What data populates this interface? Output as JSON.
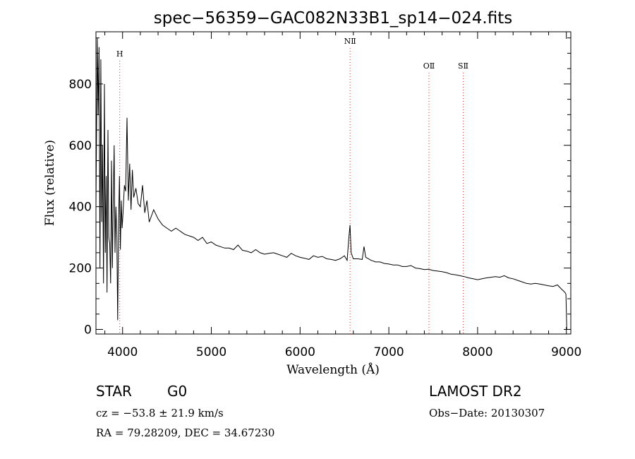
{
  "chart_data": {
    "type": "line",
    "title": "spec−56359−GAC082N33B1_sp14−024.fits",
    "xlabel": "Wavelength (Å)",
    "ylabel": "Flux (relative)",
    "xlim": [
      3700,
      9050
    ],
    "ylim": [
      -15,
      970
    ],
    "x_ticks": [
      4000,
      5000,
      6000,
      7000,
      8000,
      9000
    ],
    "y_ticks": [
      0,
      200,
      400,
      600,
      800
    ],
    "grid": false,
    "line_color": "#000000",
    "marker_color": "#d63333",
    "lines": [
      {
        "label": "H",
        "wavelength": 3968
      },
      {
        "label": "NⅡ",
        "wavelength": 6563
      },
      {
        "label": "OⅡ",
        "wavelength": 7452
      },
      {
        "label": "SⅡ",
        "wavelength": 7838
      }
    ],
    "series": [
      {
        "x": [
          3700,
          3715,
          3725,
          3735,
          3745,
          3755,
          3765,
          3775,
          3785,
          3795,
          3805,
          3815,
          3825,
          3835,
          3845,
          3855,
          3865,
          3875,
          3885,
          3895,
          3905,
          3915,
          3925,
          3935,
          3945,
          3955,
          3965,
          3975,
          3985,
          3995,
          4005,
          4020,
          4035,
          4050,
          4065,
          4080,
          4095,
          4110,
          4125,
          4150,
          4175,
          4200,
          4225,
          4250,
          4275,
          4300,
          4350,
          4400,
          4450,
          4500,
          4550,
          4600,
          4650,
          4700,
          4750,
          4800,
          4850,
          4900,
          4950,
          5000,
          5050,
          5100,
          5150,
          5200,
          5250,
          5300,
          5350,
          5400,
          5450,
          5500,
          5550,
          5600,
          5650,
          5700,
          5750,
          5800,
          5850,
          5900,
          5950,
          6000,
          6050,
          6100,
          6150,
          6200,
          6250,
          6300,
          6350,
          6400,
          6450,
          6500,
          6530,
          6550,
          6563,
          6575,
          6600,
          6650,
          6700,
          6720,
          6740,
          6760,
          6800,
          6850,
          6900,
          6950,
          7000,
          7050,
          7100,
          7150,
          7200,
          7250,
          7300,
          7350,
          7400,
          7450,
          7500,
          7550,
          7600,
          7650,
          7700,
          7750,
          7800,
          7850,
          7900,
          7950,
          8000,
          8050,
          8100,
          8150,
          8200,
          8250,
          8300,
          8350,
          8400,
          8450,
          8500,
          8550,
          8600,
          8650,
          8700,
          8750,
          8800,
          8850,
          8900,
          8950,
          8970,
          8985,
          8995,
          9000,
          9005
        ],
        "y": [
          400,
          950,
          700,
          920,
          200,
          880,
          350,
          600,
          150,
          800,
          250,
          500,
          120,
          650,
          300,
          280,
          150,
          550,
          200,
          420,
          600,
          250,
          400,
          300,
          30,
          350,
          500,
          260,
          420,
          330,
          380,
          470,
          450,
          690,
          420,
          540,
          390,
          520,
          430,
          460,
          410,
          400,
          470,
          380,
          420,
          350,
          390,
          360,
          340,
          330,
          320,
          330,
          320,
          310,
          305,
          300,
          290,
          300,
          280,
          285,
          275,
          270,
          265,
          265,
          260,
          275,
          258,
          255,
          250,
          260,
          250,
          245,
          248,
          250,
          245,
          240,
          235,
          248,
          240,
          235,
          232,
          228,
          240,
          235,
          238,
          230,
          228,
          225,
          230,
          240,
          225,
          300,
          340,
          250,
          230,
          230,
          228,
          270,
          235,
          232,
          225,
          220,
          220,
          215,
          213,
          210,
          210,
          205,
          205,
          208,
          200,
          198,
          195,
          196,
          192,
          190,
          188,
          185,
          180,
          178,
          175,
          172,
          168,
          165,
          162,
          165,
          168,
          170,
          172,
          170,
          175,
          168,
          165,
          160,
          155,
          150,
          148,
          150,
          148,
          145,
          142,
          140,
          145,
          130,
          125,
          120,
          115,
          60,
          0
        ]
      }
    ],
    "footer": {
      "object_class": "STAR",
      "subclass": "G0",
      "survey": "LAMOST DR2",
      "cz": "cz = −53.8 ± 21.9 km/s",
      "obs_date": "Obs−Date: 20130307",
      "radec": "RA =  79.28209, DEC =  34.67230"
    }
  }
}
